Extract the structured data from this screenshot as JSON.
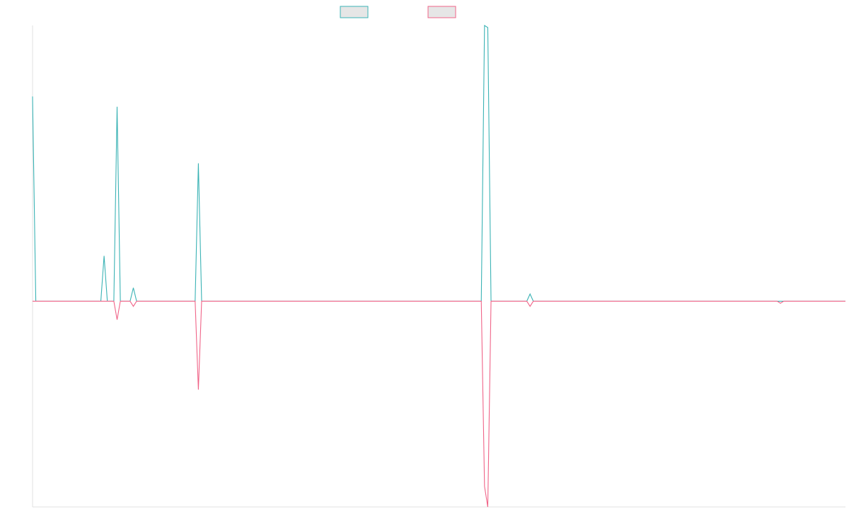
{
  "chart_data": {
    "type": "line",
    "legend_position": "top-center",
    "grid": false,
    "ylim": [
      -100,
      134
    ],
    "xlim": [
      0,
      250
    ],
    "series": [
      {
        "color": "#3bb3b5",
        "swatch_fill": "#e6e6e6",
        "points": [
          [
            0,
            99.5
          ],
          [
            1,
            0
          ],
          [
            21,
            0
          ],
          [
            22,
            22
          ],
          [
            23,
            0
          ],
          [
            25,
            0
          ],
          [
            26,
            94.5
          ],
          [
            27,
            0
          ],
          [
            30,
            0
          ],
          [
            31,
            6.5
          ],
          [
            32,
            0
          ],
          [
            50,
            0
          ],
          [
            51,
            67
          ],
          [
            52,
            0
          ],
          [
            138,
            0
          ],
          [
            139,
            134
          ],
          [
            140,
            133
          ],
          [
            141,
            0
          ],
          [
            152,
            0
          ],
          [
            153,
            3.5
          ],
          [
            154,
            0
          ],
          [
            250,
            0
          ]
        ]
      },
      {
        "color": "#f06488",
        "swatch_fill": "#e6e6e6",
        "points": [
          [
            0,
            0
          ],
          [
            20,
            0
          ],
          [
            25,
            0
          ],
          [
            26,
            -9
          ],
          [
            27,
            0
          ],
          [
            30,
            0
          ],
          [
            31,
            -2.5
          ],
          [
            32,
            0
          ],
          [
            50,
            0
          ],
          [
            51,
            -43
          ],
          [
            52,
            0
          ],
          [
            138,
            0
          ],
          [
            139,
            -90
          ],
          [
            140,
            -100
          ],
          [
            141,
            0
          ],
          [
            152,
            0
          ],
          [
            153,
            -2.5
          ],
          [
            154,
            0
          ],
          [
            229,
            0
          ],
          [
            230,
            -1
          ],
          [
            231,
            0
          ],
          [
            250,
            0
          ]
        ]
      }
    ]
  }
}
